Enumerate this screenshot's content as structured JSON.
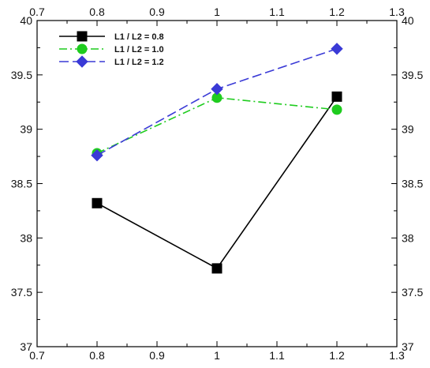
{
  "chart_data": {
    "type": "line",
    "title": "",
    "xlabel": "",
    "ylabel": "",
    "xlim": [
      0.7,
      1.3
    ],
    "ylim": [
      37,
      40
    ],
    "xticks": [
      "0.7",
      "0.8",
      "0.9",
      "1",
      "1.1",
      "1.2",
      "1.3"
    ],
    "yticks": [
      "37",
      "37.5",
      "38",
      "38.5",
      "39",
      "39.5",
      "40"
    ],
    "grid": false,
    "legend_position": "top-left",
    "series": [
      {
        "name": "L1 / L2 = 0.8",
        "color": "#000000",
        "marker": "square",
        "dash": "solid",
        "x": [
          0.8,
          1.0,
          1.2
        ],
        "y": [
          38.32,
          37.72,
          39.3
        ]
      },
      {
        "name": "L1 / L2 = 1.0",
        "color": "#1fcc1f",
        "marker": "circle",
        "dash": "dashdot",
        "x": [
          0.8,
          1.0,
          1.2
        ],
        "y": [
          38.78,
          39.29,
          39.18
        ]
      },
      {
        "name": "L1 / L2 = 1.2",
        "color": "#3a3ad6",
        "marker": "diamond",
        "dash": "dashed",
        "x": [
          0.8,
          1.0,
          1.2
        ],
        "y": [
          38.76,
          39.37,
          39.74
        ]
      }
    ]
  }
}
